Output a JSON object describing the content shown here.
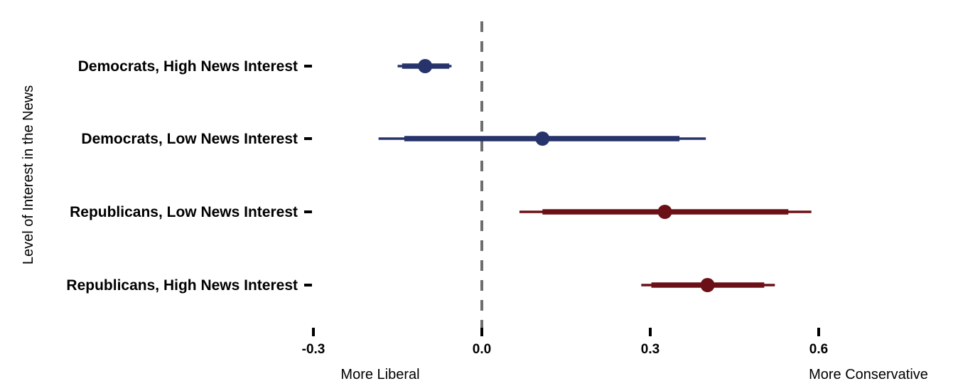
{
  "chart_data": {
    "type": "forest",
    "ylabel": "Level of Interest in the News",
    "xlabel_left": "More Liberal",
    "xlabel_right": "More Conservative",
    "xlim": [
      -0.3,
      0.6
    ],
    "xticks": [
      -0.3,
      0.0,
      0.3,
      0.6
    ],
    "xtick_labels": [
      "-0.3",
      "0.0",
      "0.3",
      "0.6"
    ],
    "reference_line": 0.0,
    "colors": {
      "democrat": "#27336b",
      "republican": "#6b1017",
      "reference": "#6e6e6e"
    },
    "series": [
      {
        "label": "Democrats, High News Interest",
        "party": "democrat",
        "estimate": -0.101,
        "ci_inner": [
          -0.142,
          -0.058
        ],
        "ci_outer": [
          -0.15,
          -0.054
        ]
      },
      {
        "label": "Democrats, Low News Interest",
        "party": "democrat",
        "estimate": 0.108,
        "ci_inner": [
          -0.138,
          0.352
        ],
        "ci_outer": [
          -0.184,
          0.399
        ]
      },
      {
        "label": "Republicans, Low News Interest",
        "party": "republican",
        "estimate": 0.326,
        "ci_inner": [
          0.108,
          0.546
        ],
        "ci_outer": [
          0.067,
          0.587
        ]
      },
      {
        "label": "Republicans, High News Interest",
        "party": "republican",
        "estimate": 0.402,
        "ci_inner": [
          0.302,
          0.503
        ],
        "ci_outer": [
          0.284,
          0.522
        ]
      }
    ]
  }
}
